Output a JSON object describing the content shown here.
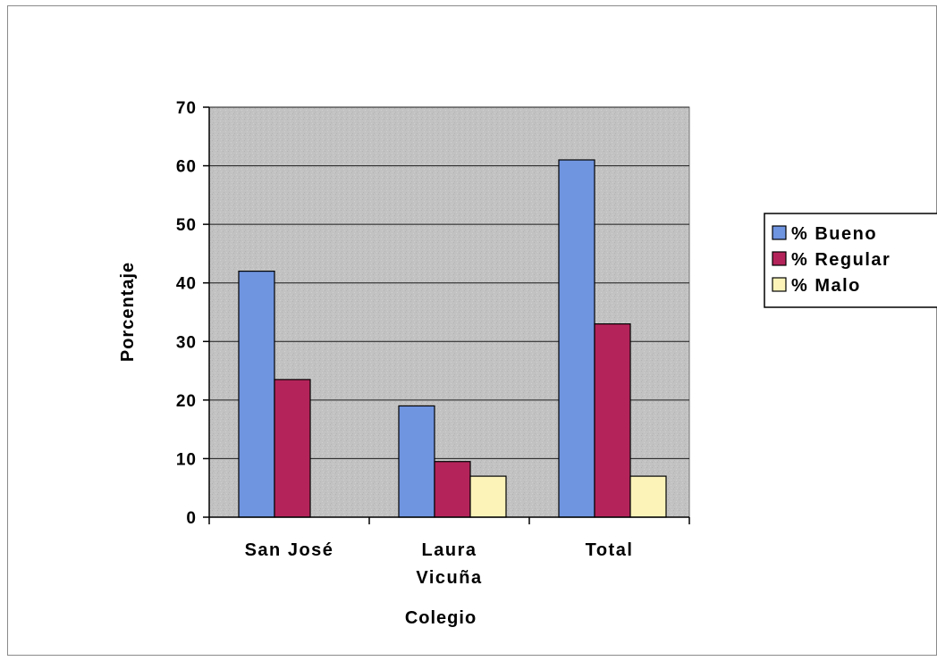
{
  "chart_data": {
    "type": "bar",
    "categories": [
      [
        "San José"
      ],
      [
        "Laura",
        "Vicuña"
      ],
      [
        "Total"
      ]
    ],
    "series": [
      {
        "name": "% Bueno",
        "values": [
          42,
          19,
          61
        ],
        "color": "#6f94e0"
      },
      {
        "name": "% Regular",
        "values": [
          23.5,
          9.5,
          33
        ],
        "color": "#b4245a"
      },
      {
        "name": "% Malo",
        "values": [
          0,
          7,
          7
        ],
        "color": "#fbf3b8"
      }
    ],
    "xlabel": "Colegio",
    "ylabel": "Porcentaje",
    "ylim": [
      0,
      70
    ],
    "yticks": [
      0,
      10,
      20,
      30,
      40,
      50,
      60,
      70
    ],
    "grid": true,
    "plot_background": "#c0c0c0",
    "legend_position": "right"
  }
}
